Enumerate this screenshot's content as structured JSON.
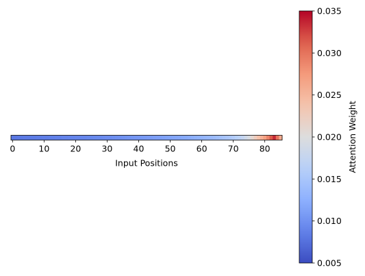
{
  "chart_data": {
    "type": "heatmap",
    "title": "",
    "xlabel": "Input Positions",
    "ylabel": "",
    "x": [
      0,
      1,
      2,
      3,
      4,
      5,
      6,
      7,
      8,
      9,
      10,
      11,
      12,
      13,
      14,
      15,
      16,
      17,
      18,
      19,
      20,
      21,
      22,
      23,
      24,
      25,
      26,
      27,
      28,
      29,
      30,
      31,
      32,
      33,
      34,
      35,
      36,
      37,
      38,
      39,
      40,
      41,
      42,
      43,
      44,
      45,
      46,
      47,
      48,
      49,
      50,
      51,
      52,
      53,
      54,
      55,
      56,
      57,
      58,
      59,
      60,
      61,
      62,
      63,
      64,
      65,
      66,
      67,
      68,
      69,
      70,
      71,
      72,
      73,
      74,
      75,
      76,
      77,
      78,
      79,
      80,
      81,
      82,
      83,
      84,
      85
    ],
    "values": [
      0.008,
      0.008,
      0.0081,
      0.0081,
      0.0082,
      0.0082,
      0.0083,
      0.0083,
      0.0084,
      0.0084,
      0.0085,
      0.0085,
      0.0086,
      0.0086,
      0.0087,
      0.0087,
      0.0088,
      0.0088,
      0.0089,
      0.0089,
      0.009,
      0.009,
      0.0091,
      0.0091,
      0.0092,
      0.0092,
      0.0093,
      0.0094,
      0.0094,
      0.0095,
      0.0096,
      0.0096,
      0.0097,
      0.0098,
      0.0099,
      0.01,
      0.0101,
      0.0102,
      0.0103,
      0.0104,
      0.0105,
      0.0106,
      0.0107,
      0.0108,
      0.0109,
      0.011,
      0.0111,
      0.0112,
      0.0113,
      0.0114,
      0.0115,
      0.0116,
      0.0117,
      0.0118,
      0.0119,
      0.012,
      0.0122,
      0.0124,
      0.0126,
      0.0128,
      0.013,
      0.0132,
      0.0134,
      0.0136,
      0.0138,
      0.0141,
      0.0144,
      0.0147,
      0.015,
      0.0153,
      0.0157,
      0.0162,
      0.0168,
      0.0175,
      0.0185,
      0.0195,
      0.021,
      0.0225,
      0.024,
      0.0255,
      0.027,
      0.029,
      0.0315,
      0.0335,
      0.03,
      0.026
    ],
    "x_ticks": [
      "0",
      "10",
      "20",
      "30",
      "40",
      "50",
      "60",
      "70",
      "80"
    ],
    "x_tick_values": [
      0,
      10,
      20,
      30,
      40,
      50,
      60,
      70,
      80
    ],
    "xlim": [
      -0.5,
      85.5
    ],
    "colorbar": {
      "label": "Attention Weight",
      "colormap": "coolwarm",
      "range": [
        0.005,
        0.035
      ],
      "ticks": [
        "0.005",
        "0.010",
        "0.015",
        "0.020",
        "0.025",
        "0.030",
        "0.035"
      ],
      "tick_values": [
        0.005,
        0.01,
        0.015,
        0.02,
        0.025,
        0.03,
        0.035
      ]
    },
    "grid": false
  }
}
